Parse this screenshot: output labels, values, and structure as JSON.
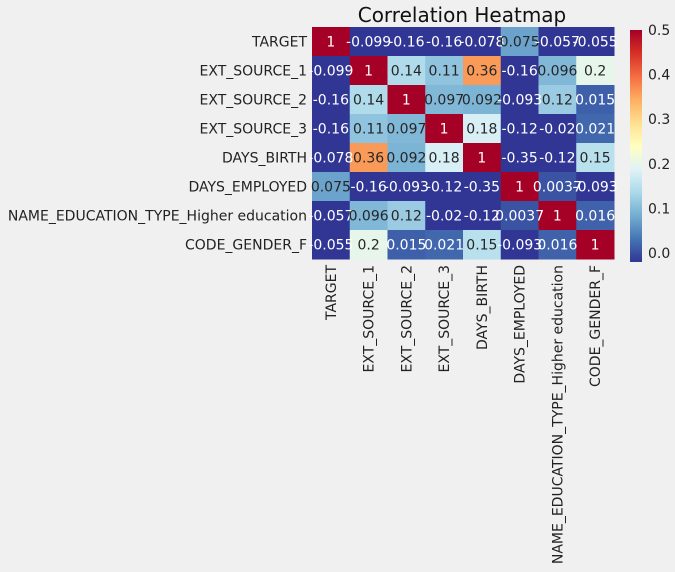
{
  "chart_data": {
    "type": "heatmap",
    "title": "Correlation Heatmap",
    "xlabel": "",
    "ylabel": "",
    "rows": [
      "TARGET",
      "EXT_SOURCE_1",
      "EXT_SOURCE_2",
      "EXT_SOURCE_3",
      "DAYS_BIRTH",
      "DAYS_EMPLOYED",
      "NAME_EDUCATION_TYPE_Higher education",
      "CODE_GENDER_F"
    ],
    "columns": [
      "TARGET",
      "EXT_SOURCE_1",
      "EXT_SOURCE_2",
      "EXT_SOURCE_3",
      "DAYS_BIRTH",
      "DAYS_EMPLOYED",
      "NAME_EDUCATION_TYPE_Higher education",
      "CODE_GENDER_F"
    ],
    "values": [
      [
        1,
        -0.099,
        -0.16,
        -0.16,
        -0.078,
        0.075,
        -0.057,
        -0.055
      ],
      [
        -0.099,
        1,
        0.14,
        0.11,
        0.36,
        -0.16,
        0.096,
        0.2
      ],
      [
        -0.16,
        0.14,
        1,
        0.097,
        0.092,
        -0.093,
        0.12,
        0.015
      ],
      [
        -0.16,
        0.11,
        0.097,
        1,
        0.18,
        -0.12,
        -0.02,
        0.021
      ],
      [
        -0.078,
        0.36,
        0.092,
        0.18,
        1,
        -0.35,
        -0.12,
        0.15
      ],
      [
        0.075,
        -0.16,
        -0.093,
        -0.12,
        -0.35,
        1,
        0.0037,
        -0.093
      ],
      [
        -0.057,
        0.096,
        0.12,
        -0.02,
        -0.12,
        0.0037,
        1,
        0.016
      ],
      [
        -0.055,
        0.2,
        0.015,
        0.021,
        0.15,
        -0.093,
        0.016,
        1
      ]
    ],
    "annotations": [
      [
        "1",
        "-0.099",
        "-0.16",
        "-0.16",
        "-0.078",
        "0.075",
        "-0.057",
        "-0.055"
      ],
      [
        "-0.099",
        "1",
        "0.14",
        "0.11",
        "0.36",
        "-0.16",
        "0.096",
        "0.2"
      ],
      [
        "-0.16",
        "0.14",
        "1",
        "0.097",
        "0.092",
        "-0.093",
        "0.12",
        "0.015"
      ],
      [
        "-0.16",
        "0.11",
        "0.097",
        "1",
        "0.18",
        "-0.12",
        "-0.02",
        "0.021"
      ],
      [
        "-0.078",
        "0.36",
        "0.092",
        "0.18",
        "1",
        "-0.35",
        "-0.12",
        "0.15"
      ],
      [
        "0.075",
        "-0.16",
        "-0.093",
        "-0.12",
        "-0.35",
        "1",
        "0.0037",
        "-0.093"
      ],
      [
        "-0.057",
        "0.096",
        "0.12",
        "-0.02",
        "-0.12",
        "0.0037",
        "1",
        "0.016"
      ],
      [
        "-0.055",
        "0.2",
        "0.015",
        "0.021",
        "0.15",
        "-0.093",
        "0.016",
        "1"
      ]
    ],
    "colormap": "RdYlBu_r",
    "vmin": -0.02,
    "vmax": 0.5,
    "colorbar_ticks": [
      "0.0",
      "0.1",
      "0.2",
      "0.3",
      "0.4",
      "0.5"
    ],
    "colorbar_tick_values": [
      0.0,
      0.1,
      0.2,
      0.3,
      0.4,
      0.5
    ],
    "grid": false
  }
}
